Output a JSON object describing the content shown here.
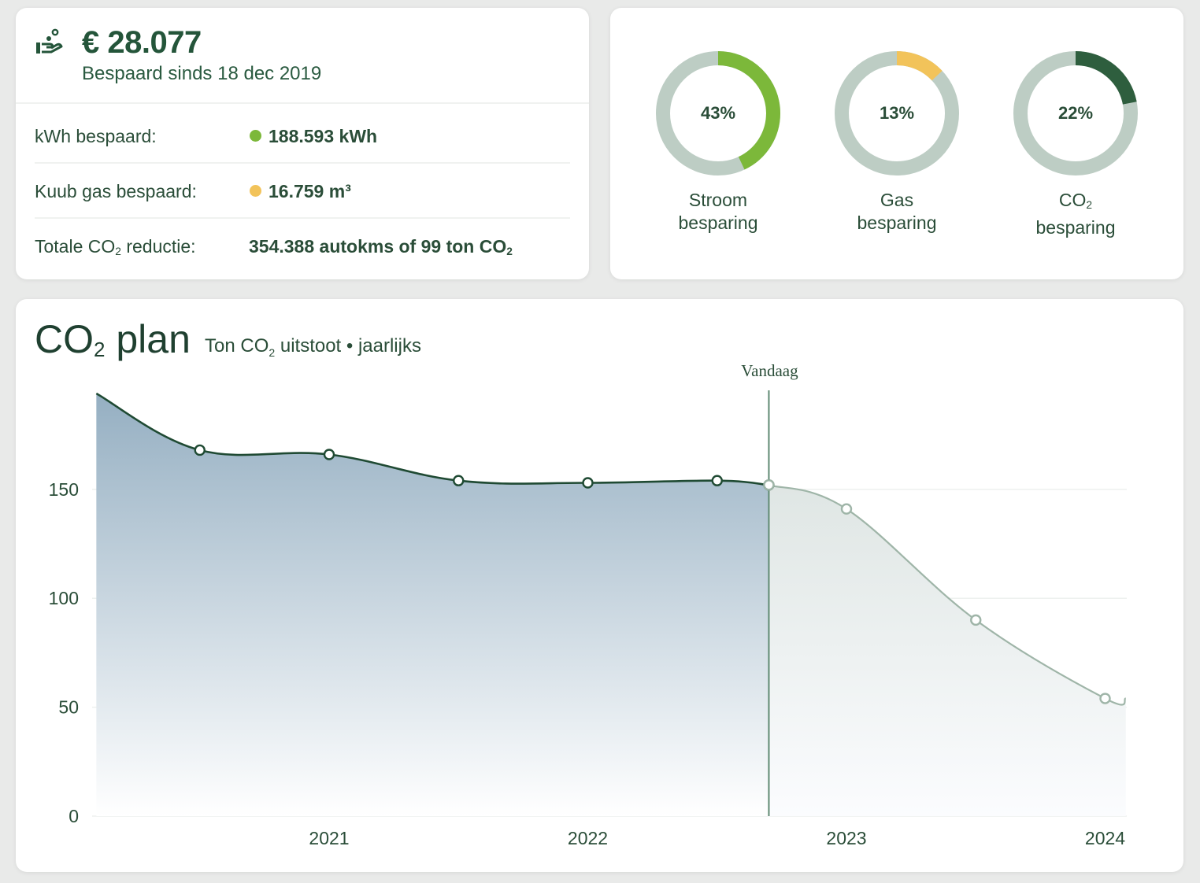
{
  "savings": {
    "amount": "€ 28.077",
    "since": "Bespaard sinds 18 dec 2019",
    "rows": [
      {
        "label": "kWh bespaard:",
        "value": "188.593 kWh",
        "dot_color": "#7cb83a"
      },
      {
        "label": "Kuub gas bespaard:",
        "value": "16.759 m³",
        "dot_color": "#f2c35a"
      },
      {
        "label_prefix": "Totale CO",
        "label_sub": "2",
        "label_suffix": " reductie:",
        "value_prefix": "354.388 autokms of 99 ton CO",
        "value_sub": "2"
      }
    ]
  },
  "donuts": [
    {
      "pct": "43%",
      "value": 0.43,
      "line1": "Stroom",
      "line2": "besparing",
      "color": "#7cb83a"
    },
    {
      "pct": "13%",
      "value": 0.13,
      "line1": "Gas",
      "line2": "besparing",
      "color": "#f2c35a"
    },
    {
      "pct": "22%",
      "value": 0.22,
      "line1_prefix": "CO",
      "line1_sub": "2",
      "line2": "besparing",
      "color": "#2e5e3e"
    }
  ],
  "chart_card": {
    "title_prefix": "CO",
    "title_sub": "2",
    "title_suffix": " plan",
    "subtitle_prefix": "Ton CO",
    "subtitle_sub": "2",
    "subtitle_suffix": " uitstoot • jaarlijks"
  },
  "chart_data": {
    "type": "area",
    "xlabel": "",
    "ylabel": "",
    "ylim": [
      0,
      200
    ],
    "y_ticks": [
      0,
      50,
      100,
      150
    ],
    "x_ticks": [
      "2021",
      "2022",
      "2023",
      "2024"
    ],
    "today_label": "Vandaag",
    "today_x": 2022.7,
    "colors": {
      "actual_line": "#1f4a33",
      "forecast_line": "#9fb5a8",
      "area_top": "#9db5c5",
      "marker_fill": "#ffffff"
    },
    "series": [
      {
        "kind": "actual",
        "x": [
          2020.1,
          2020.5,
          2021.0,
          2021.5,
          2022.0,
          2022.5,
          2022.7
        ],
        "y": [
          194,
          168,
          166,
          154,
          153,
          154,
          152
        ],
        "markers": [
          false,
          true,
          true,
          true,
          true,
          true,
          true
        ]
      },
      {
        "kind": "forecast",
        "x": [
          2022.7,
          2023.0,
          2023.5,
          2024.0,
          2024.08
        ],
        "y": [
          152,
          141,
          90,
          54,
          54
        ],
        "markers": [
          true,
          true,
          true,
          true,
          false
        ]
      }
    ]
  }
}
